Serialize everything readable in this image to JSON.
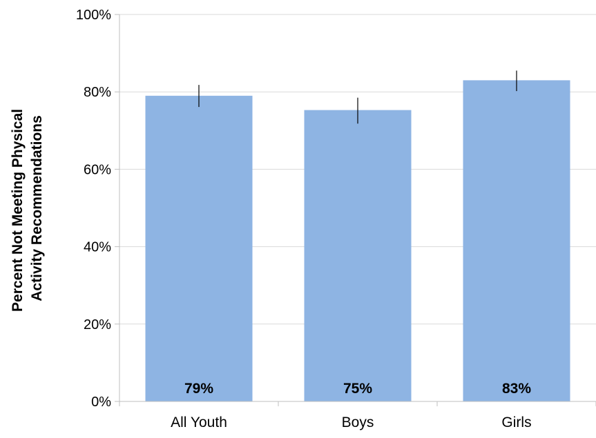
{
  "chart_data": {
    "type": "bar",
    "categories": [
      "All Youth",
      "Boys",
      "Girls"
    ],
    "values": [
      79,
      75.3,
      83
    ],
    "data_labels": [
      "79%",
      "75%",
      "83%"
    ],
    "error_bars": [
      {
        "low": 76.1,
        "high": 81.8
      },
      {
        "low": 71.8,
        "high": 78.5
      },
      {
        "low": 80.2,
        "high": 85.5
      }
    ],
    "ylabel_lines": [
      "Percent Not Meeting Physical",
      "Activity Recommendations"
    ],
    "xlabel": "",
    "ylim": [
      0,
      100
    ],
    "yticks": [
      0,
      20,
      40,
      60,
      80,
      100
    ],
    "ytick_labels": [
      "0%",
      "20%",
      "40%",
      "60%",
      "80%",
      "100%"
    ],
    "grid": true,
    "legend": "none",
    "colors": {
      "bar": "#8EB4E3",
      "grid": "#D9D9D9",
      "axis": "#BFBFBF",
      "error": "#000000"
    }
  }
}
